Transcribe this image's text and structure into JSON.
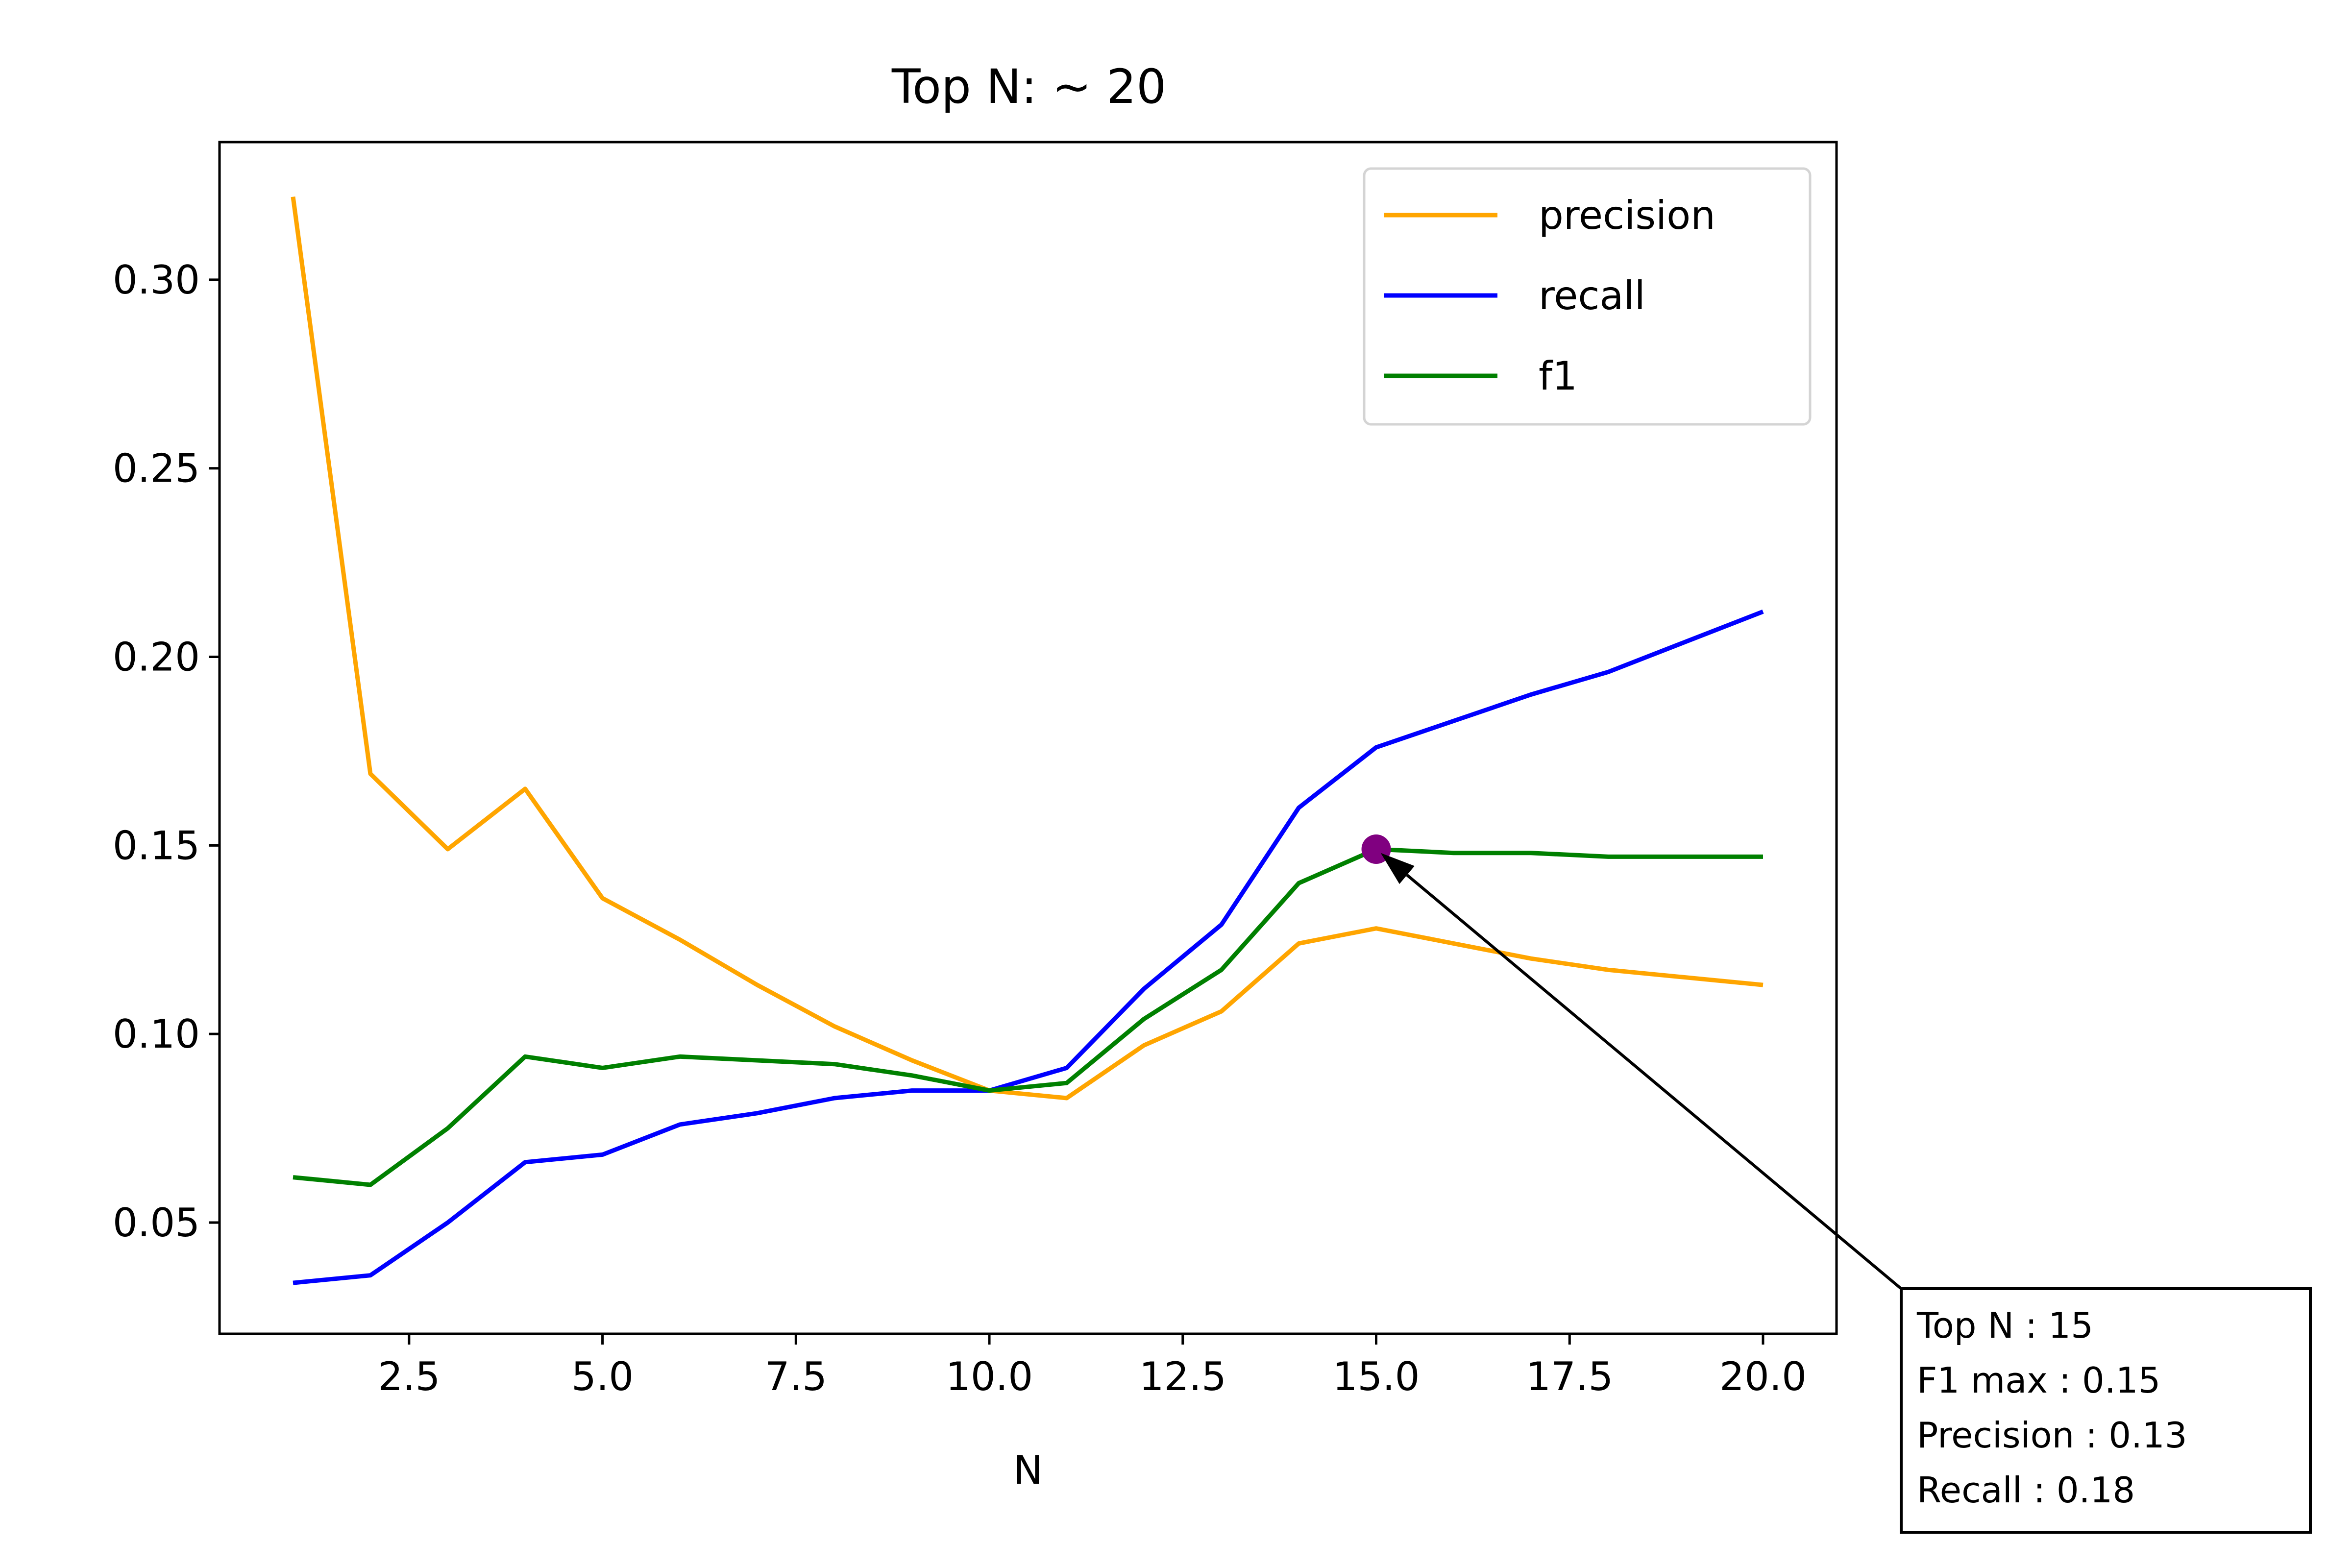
{
  "chart_data": {
    "type": "line",
    "title": "Top N: ~ 20",
    "xlabel": "N",
    "ylabel": "",
    "xlim": [
      0.05,
      20.95
    ],
    "ylim": [
      0.0205,
      0.3365
    ],
    "xticks": [
      2.5,
      5.0,
      7.5,
      10.0,
      12.5,
      15.0,
      17.5,
      20.0
    ],
    "xtick_labels": [
      "2.5",
      "5.0",
      "7.5",
      "10.0",
      "12.5",
      "15.0",
      "17.5",
      "20.0"
    ],
    "yticks": [
      0.05,
      0.1,
      0.15,
      0.2,
      0.25,
      0.3
    ],
    "ytick_labels": [
      "0.05",
      "0.10",
      "0.15",
      "0.20",
      "0.25",
      "0.30"
    ],
    "grid": false,
    "legend_position": "upper-right",
    "x": [
      1,
      2,
      3,
      4,
      5,
      6,
      7,
      8,
      9,
      10,
      11,
      12,
      13,
      14,
      15,
      16,
      17,
      18,
      19,
      20
    ],
    "series": [
      {
        "name": "precision",
        "color": "#ffa500",
        "values": [
          0.322,
          0.169,
          0.149,
          0.165,
          0.136,
          0.125,
          0.113,
          0.102,
          0.093,
          0.085,
          0.083,
          0.097,
          0.106,
          0.124,
          0.128,
          0.124,
          0.12,
          0.117,
          0.115,
          0.113
        ]
      },
      {
        "name": "recall",
        "color": "#0000ff",
        "values": [
          0.034,
          0.036,
          0.05,
          0.066,
          0.068,
          0.076,
          0.079,
          0.083,
          0.085,
          0.085,
          0.091,
          0.112,
          0.129,
          0.16,
          0.176,
          0.183,
          0.19,
          0.196,
          0.204,
          0.212
        ]
      },
      {
        "name": "f1",
        "color": "#008000",
        "values": [
          0.062,
          0.06,
          0.075,
          0.094,
          0.091,
          0.094,
          0.093,
          0.092,
          0.089,
          0.085,
          0.087,
          0.104,
          0.117,
          0.14,
          0.149,
          0.148,
          0.148,
          0.147,
          0.147,
          0.147
        ]
      }
    ],
    "highlight_point": {
      "x": 15,
      "y": 0.149,
      "color": "#800080"
    },
    "annotation": {
      "lines": [
        "Top N : 15",
        "F1 max : 0.15",
        "Precision : 0.13",
        "Recall : 0.18"
      ]
    }
  }
}
